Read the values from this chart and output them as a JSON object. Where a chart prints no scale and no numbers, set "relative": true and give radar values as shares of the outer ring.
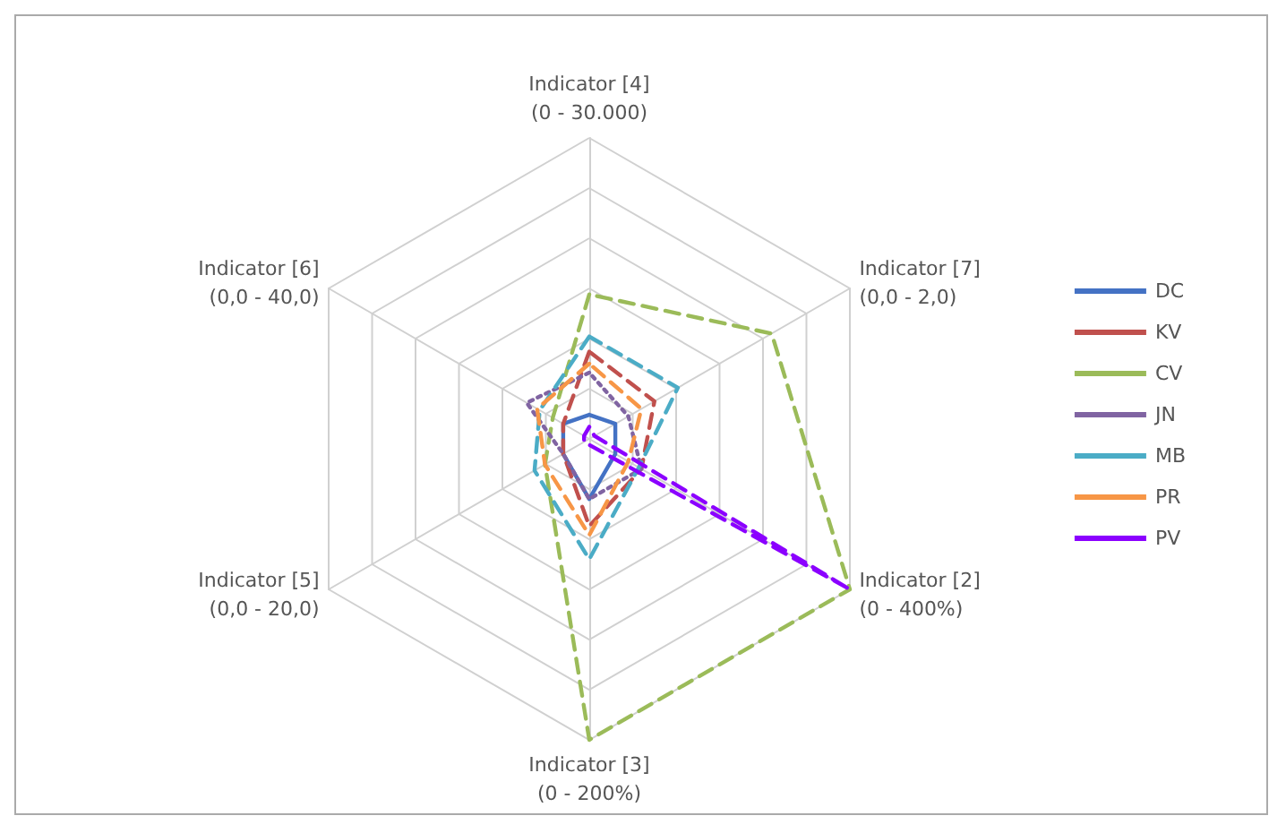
{
  "chart_data": {
    "type": "radar",
    "relative": true,
    "legend": "right",
    "categories": [
      "Indicator [4]\n(0 - 30.000)",
      "Indicator [7]\n(0,0 - 2,0)",
      "Indicator [2]\n(0 - 400%)",
      "Indicator [3]\n(0 - 200%)",
      "Indicator [5]\n(0,0 - 20,0)",
      "Indicator [6]\n(0,0 - 40,0)"
    ],
    "series": [
      {
        "name": "DC",
        "color": "#4472c4",
        "line_style": "solid",
        "values": [
          0.08,
          0.1,
          0.1,
          0.2,
          0.1,
          0.1
        ]
      },
      {
        "name": "KV",
        "color": "#c0504d",
        "line_style": "dashed",
        "values": [
          0.29,
          0.25,
          0.2,
          0.29,
          0.1,
          0.1
        ]
      },
      {
        "name": "CV",
        "color": "#9bbb59",
        "line_style": "dashed",
        "values": [
          0.48,
          0.7,
          1,
          1,
          0.17,
          0.14
        ]
      },
      {
        "name": "JN",
        "color": "#8064a2",
        "line_style": "dotted",
        "values": [
          0.22,
          0.15,
          0.2,
          0.2,
          0.1,
          0.24
        ]
      },
      {
        "name": "MB",
        "color": "#4bacc6",
        "line_style": "dashed",
        "values": [
          0.34,
          0.34,
          0.19,
          0.4,
          0.21,
          0.19
        ]
      },
      {
        "name": "PR",
        "color": "#f79646",
        "line_style": "dashed",
        "values": [
          0.25,
          0.2,
          0.15,
          0.32,
          0.17,
          0.2
        ]
      },
      {
        "name": "PV",
        "color": "#8b00ff",
        "line_style": "dashed",
        "values": [
          0.04,
          0.02,
          1,
          0.02,
          0.02,
          0.02
        ]
      }
    ]
  }
}
